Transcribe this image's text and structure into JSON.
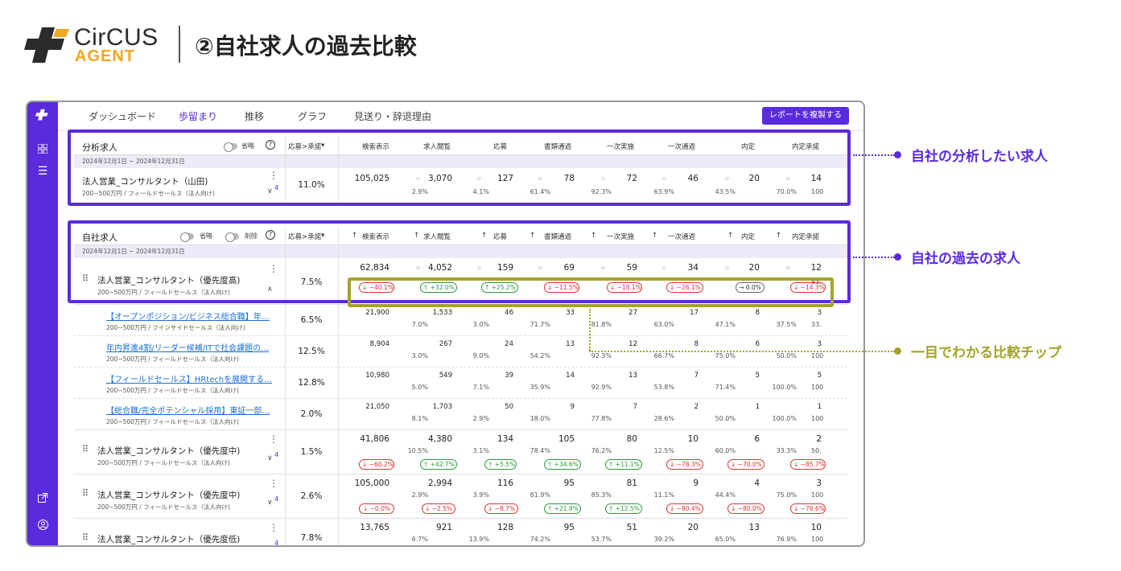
{
  "brand": {
    "word": "CirCUS",
    "sub": "AGENT",
    "accent": "#f5a623",
    "mark": "#2b2b2b"
  },
  "heading": "②自社求人の過去比較",
  "colors": {
    "primary": "#5a2bdc",
    "olive": "#a3a32a",
    "up": "#2a9b3a",
    "down": "#d33333"
  },
  "tabs": [
    {
      "label": "ダッシュボード",
      "active": false
    },
    {
      "label": "歩留まり",
      "active": true
    },
    {
      "label": "推移",
      "active": false
    },
    {
      "label": "グラフ",
      "active": false
    },
    {
      "label": "見送り・辞退理由",
      "active": false
    }
  ],
  "copy_button": "レポートを複製する",
  "rail_icons": [
    "brand-icon",
    "dashboard-icon",
    "list-icon",
    "external-link-icon",
    "account-icon"
  ],
  "columns": [
    "応募>承諾",
    "検索表示",
    "求人閲覧",
    "応募",
    "書類通過",
    "一次実施",
    "一次通過",
    "内定",
    "内定承諾"
  ],
  "analysis": {
    "title": "分析求人",
    "toggle_label": "省略",
    "date_range": "2024年12月1日 ~ 2024年12月31日",
    "row": {
      "title": "法人営業_コンサルタント（山田)",
      "sub": "200~500万円 / フィールドセールス（法人向け)",
      "count": "4",
      "rate": "11.0%",
      "nums": [
        "105,025",
        "3,070",
        "127",
        "78",
        "72",
        "46",
        "20",
        "14"
      ],
      "pcts": [
        "2.9%",
        "4.1%",
        "61.4%",
        "92.3%",
        "63.9%",
        "43.5%",
        "70.0%",
        "100"
      ]
    }
  },
  "own": {
    "title": "自社求人",
    "toggle_label_1": "省略",
    "toggle_label_2": "削除",
    "date_range": "2024年12月1日 ~ 2024年12月31日",
    "main_row": {
      "title": "法人営業_コンサルタント（優先度高)",
      "sub": "200~500万円 / フィールドセールス（法人向け)",
      "rate": "7.5%",
      "nums": [
        "62,834",
        "4,052",
        "159",
        "69",
        "59",
        "34",
        "20",
        "12"
      ],
      "chips": [
        {
          "text": "↓ −40.1%",
          "kind": "down"
        },
        {
          "text": "↑ +32.0%",
          "kind": "up"
        },
        {
          "text": "↑ +25.2%",
          "kind": "up"
        },
        {
          "text": "↓ −11.5%",
          "kind": "down"
        },
        {
          "text": "↓ −18.1%",
          "kind": "down"
        },
        {
          "text": "↓ −26.1%",
          "kind": "down"
        },
        {
          "text": "→ 0.0%",
          "kind": "flat"
        },
        {
          "text": "↓ −14.3%",
          "kind": "down"
        }
      ],
      "overflow": "83."
    },
    "sub_rows": [
      {
        "title": "【オープンポジション/ビジネス総合職】年…",
        "sub": "200~500万円 / フインサイドセールス（法人向け)",
        "rate": "6.5%",
        "nums": [
          "21,900",
          "1,533",
          "46",
          "33",
          "27",
          "17",
          "8",
          "3"
        ],
        "pcts": [
          "7.0%",
          "3.0%",
          "71.7%",
          "81.8%",
          "63.0%",
          "47.1%",
          "37.5%",
          "33."
        ]
      },
      {
        "title": "年内昇進4割/リーダー候補/ITで社会課題の…",
        "sub": "200~500万円 / フィールドセールス（法人向け)",
        "rate": "12.5%",
        "nums": [
          "8,904",
          "267",
          "24",
          "13",
          "12",
          "8",
          "6",
          "3"
        ],
        "pcts": [
          "3.0%",
          "9.0%",
          "54.2%",
          "92.3%",
          "66.7%",
          "75.0%",
          "50.0%",
          "100"
        ]
      },
      {
        "title": "【フィールドセールス】HRtechを展開する…",
        "sub": "200~500万円 / フィールドセールス（法人向け)",
        "rate": "12.8%",
        "nums": [
          "10,980",
          "549",
          "39",
          "14",
          "13",
          "7",
          "5",
          "5"
        ],
        "pcts": [
          "5.0%",
          "7.1%",
          "35.9%",
          "92.9%",
          "53.8%",
          "71.4%",
          "100.0%",
          "100"
        ]
      },
      {
        "title": "【総合職/完全ポテンシャル採用】東証一部…",
        "sub": "200~500万円 / フィールドセールス（法人向け)",
        "rate": "2.0%",
        "nums": [
          "21,050",
          "1,703",
          "50",
          "9",
          "7",
          "2",
          "1",
          "1"
        ],
        "pcts": [
          "8.1%",
          "2.9%",
          "18.0%",
          "77.8%",
          "28.6%",
          "50.0%",
          "100.0%",
          "100"
        ]
      }
    ],
    "rows": [
      {
        "title": "法人営業_コンサルタント（優先度中)",
        "sub": "200~500万円 / フィールドセールス（法人向け)",
        "count": "4",
        "rate": "1.5%",
        "nums": [
          "41,806",
          "4,380",
          "134",
          "105",
          "80",
          "10",
          "6",
          "2"
        ],
        "pcts": [
          "10.5%",
          "3.1%",
          "78.4%",
          "76.2%",
          "12.5%",
          "60.0%",
          "33.3%",
          "50."
        ],
        "chips": [
          {
            "text": "↓ −60.2%",
            "kind": "down"
          },
          {
            "text": "↑ +42.7%",
            "kind": "up"
          },
          {
            "text": "↑ +5.5%",
            "kind": "up"
          },
          {
            "text": "↑ +34.6%",
            "kind": "up"
          },
          {
            "text": "↑ +11.1%",
            "kind": "up"
          },
          {
            "text": "↓ −78.3%",
            "kind": "down"
          },
          {
            "text": "↓ −70.0%",
            "kind": "down"
          },
          {
            "text": "↓ −85.7%",
            "kind": "down"
          }
        ]
      },
      {
        "title": "法人営業_コンサルタント（優先度中)",
        "sub": "200~500万円 / フィールドセールス（法人向け)",
        "count": "4",
        "rate": "2.6%",
        "nums": [
          "105,000",
          "2,994",
          "116",
          "95",
          "81",
          "9",
          "4",
          "3"
        ],
        "pcts": [
          "2.9%",
          "3.9%",
          "81.9%",
          "85.3%",
          "11.1%",
          "44.4%",
          "75.0%",
          "100"
        ],
        "chips": [
          {
            "text": "↓ −0.0%",
            "kind": "down"
          },
          {
            "text": "↓ −2.5%",
            "kind": "down"
          },
          {
            "text": "↓ −8.7%",
            "kind": "down"
          },
          {
            "text": "↑ +21.8%",
            "kind": "up"
          },
          {
            "text": "↑ +12.5%",
            "kind": "up"
          },
          {
            "text": "↓ −80.4%",
            "kind": "down"
          },
          {
            "text": "↓ −80.0%",
            "kind": "down"
          },
          {
            "text": "↓ −78.6%",
            "kind": "down"
          }
        ]
      },
      {
        "title": "法人営業_コンサルタント（優先度低)",
        "sub": "",
        "count": "4",
        "rate": "7.8%",
        "nums": [
          "13,765",
          "921",
          "128",
          "95",
          "51",
          "20",
          "13",
          "10"
        ],
        "pcts": [
          "6.7%",
          "13.9%",
          "74.2%",
          "53.7%",
          "39.2%",
          "65.0%",
          "76.9%",
          "100"
        ],
        "chips": []
      }
    ]
  },
  "callouts": {
    "analysis": "自社の分析したい求人",
    "past": "自社の過去の求人",
    "chips": "一目でわかる比較チップ"
  }
}
